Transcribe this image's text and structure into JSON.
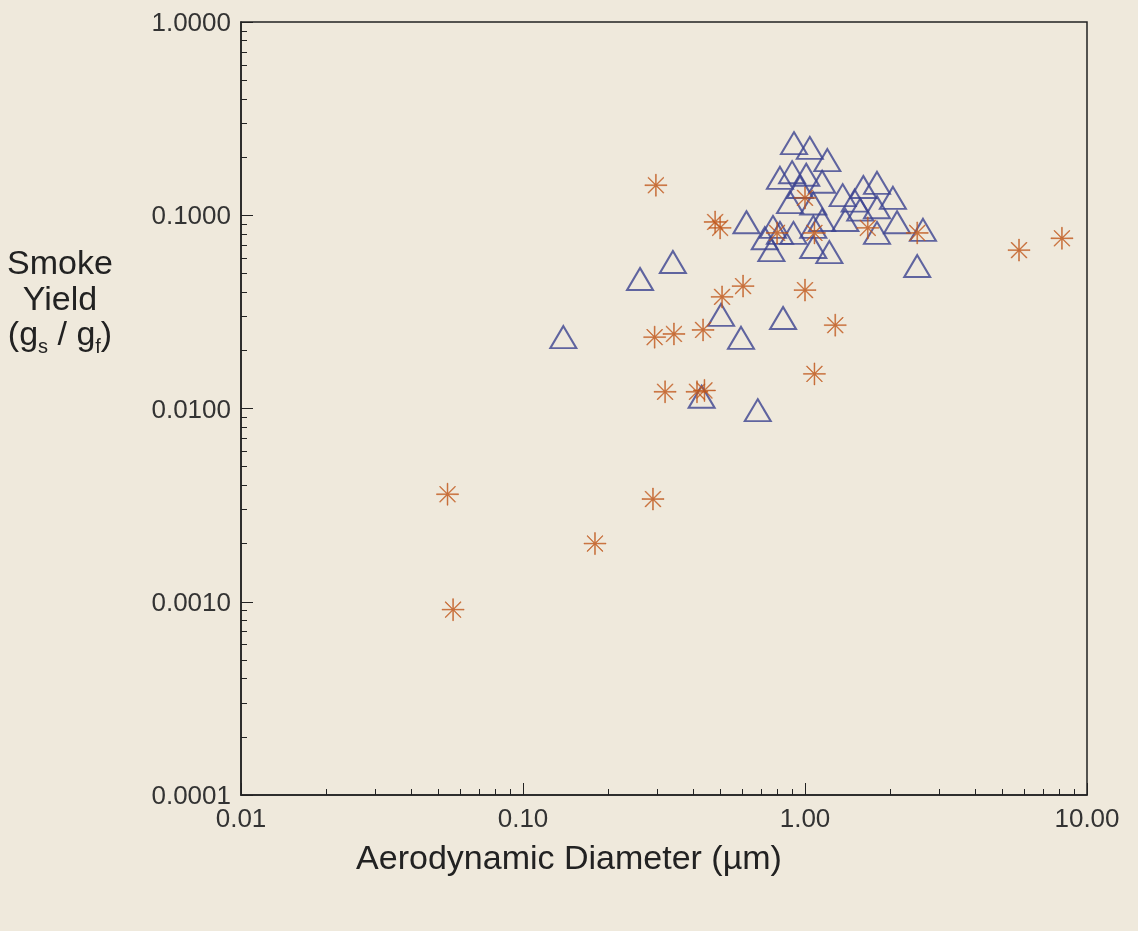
{
  "chart_data": {
    "type": "scatter",
    "xlabel": "Aerodynamic Diameter (µm)",
    "ylabel": "Smoke Yield (g$_{s}$ / g$_{f}$)",
    "log": "xy",
    "xlim": [
      0.01,
      10
    ],
    "ylim": [
      0.0001,
      1
    ],
    "xticks": [
      0.01,
      {
        "value": 0.1,
        "label": "0.10"
      },
      {
        "value": 1,
        "label": "1.00"
      },
      {
        "value": 10,
        "label": "10.00"
      }
    ],
    "yticks": [
      {
        "value": 0.0001,
        "label": "0.0001"
      },
      {
        "value": 0.001,
        "label": "0.0010"
      },
      {
        "value": 0.01,
        "label": "0.0100"
      },
      {
        "value": 0.1,
        "label": "0.1000"
      },
      {
        "value": 1,
        "label": "1.0000"
      }
    ],
    "grid": false,
    "series": [
      {
        "color": "#3b4290",
        "marker": "triangle",
        "x": [
          0.139,
          0.26,
          0.34,
          0.593,
          0.504,
          0.68,
          0.836,
          2.5,
          0.43,
          0.62,
          0.914,
          1.04,
          1.2,
          0.815,
          0.9,
          1.01,
          1.15,
          0.885,
          1.07,
          1.36,
          1.5,
          1.61,
          1.8,
          2.05,
          1.39,
          1.8,
          1.57,
          2.12,
          1.8,
          0.77,
          0.72,
          0.815,
          0.76,
          0.91,
          1.07,
          1.15,
          1.07,
          1.22,
          2.62,
          0.96
        ],
        "values": [
          0.0234,
          0.0468,
          0.0573,
          0.0232,
          0.0305,
          0.0098,
          0.0294,
          0.0546,
          0.0115,
          0.092,
          0.236,
          0.223,
          0.193,
          0.156,
          0.167,
          0.162,
          0.149,
          0.117,
          0.115,
          0.127,
          0.119,
          0.14,
          0.147,
          0.123,
          0.0945,
          0.11,
          0.107,
          0.092,
          0.081,
          0.087,
          0.076,
          0.081,
          0.066,
          0.081,
          0.087,
          0.0945,
          0.0685,
          0.0645,
          0.084,
          0.14
        ]
      },
      {
        "color": "#c0561a",
        "marker": "cross",
        "x": [
          0.054,
          0.0565,
          0.18,
          0.289,
          0.296,
          0.293,
          0.343,
          0.319,
          0.435,
          0.414,
          0.44,
          0.48,
          0.5,
          0.508,
          0.603,
          0.796,
          1.0,
          1.0,
          1.08,
          1.08,
          1.28,
          1.67,
          2.5,
          5.74,
          8.15
        ],
        "values": [
          0.0036,
          0.00091,
          0.002,
          0.0034,
          0.143,
          0.0234,
          0.0243,
          0.0122,
          0.0255,
          0.0122,
          0.0124,
          0.0923,
          0.086,
          0.0378,
          0.043,
          0.081,
          0.041,
          0.123,
          0.081,
          0.0151,
          0.027,
          0.086,
          0.081,
          0.066,
          0.076
        ]
      }
    ]
  }
}
